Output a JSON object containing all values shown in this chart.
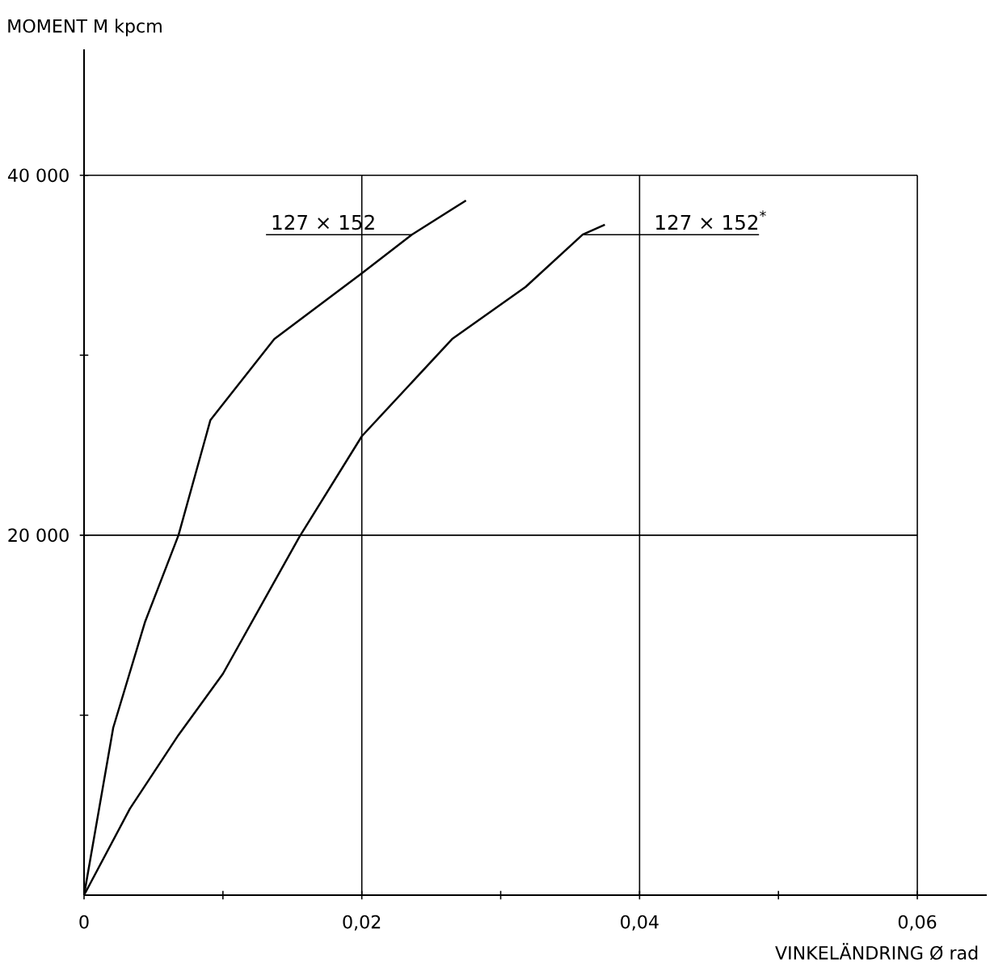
{
  "chart_data": {
    "type": "line",
    "xlabel": "VINKELÄNDRING  Ø  rad",
    "ylabel": "MOMENT   M   kpcm",
    "xlim": [
      0,
      0.065
    ],
    "ylim": [
      0,
      47000
    ],
    "xticks": [
      {
        "value": 0,
        "label": "0"
      },
      {
        "value": 0.01,
        "label": null
      },
      {
        "value": 0.02,
        "label": "0,02"
      },
      {
        "value": 0.03,
        "label": null
      },
      {
        "value": 0.04,
        "label": "0,04"
      },
      {
        "value": 0.05,
        "label": null
      },
      {
        "value": 0.06,
        "label": "0,06"
      }
    ],
    "yticks": [
      {
        "value": 10000,
        "label": null
      },
      {
        "value": 20000,
        "label": "20 000"
      },
      {
        "value": 30000,
        "label": null
      },
      {
        "value": 40000,
        "label": "40 000"
      }
    ],
    "grid": true,
    "marker": "none",
    "line_style": "solid",
    "series": [
      {
        "name": "127 × 152",
        "color": "#000000",
        "x": [
          0,
          0.0021,
          0.0044,
          0.0068,
          0.0091,
          0.0137,
          0.02,
          0.0236,
          0.0275
        ],
        "values": [
          0,
          9300,
          15200,
          20000,
          26400,
          30900,
          34550,
          36700,
          38600
        ]
      },
      {
        "name": "127 × 152$^{*}$",
        "color": "#000000",
        "x": [
          0,
          0.0033,
          0.0068,
          0.01,
          0.0155,
          0.02,
          0.0265,
          0.0318,
          0.0359,
          0.0375
        ],
        "values": [
          0,
          4800,
          8900,
          12300,
          19900,
          25500,
          30900,
          33800,
          36700,
          37250
        ]
      }
    ]
  }
}
